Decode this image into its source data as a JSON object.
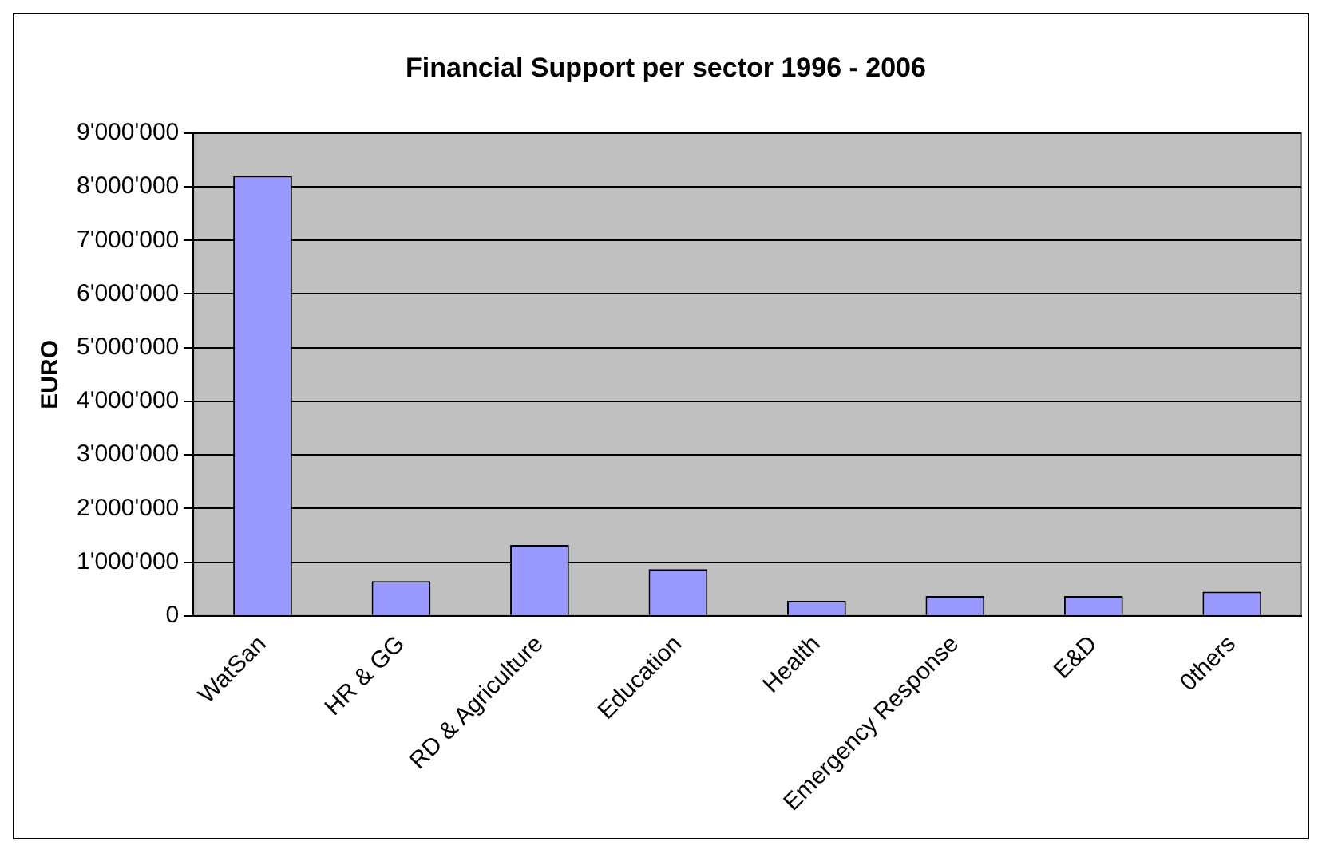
{
  "chart_data": {
    "type": "bar",
    "title": "Financial Support per sector 1996 - 2006",
    "ylabel": "EURO",
    "categories": [
      "WatSan",
      "HR & GG",
      "RD & Agriculture",
      "Education",
      "Health",
      "Emergency Response",
      "E&D",
      "0thers"
    ],
    "values": [
      8200000,
      650000,
      1320000,
      870000,
      280000,
      370000,
      370000,
      450000
    ],
    "color": "#9999ff",
    "ylim": [
      0,
      9000000
    ],
    "yticks": [
      {
        "value": 0,
        "label": "0"
      },
      {
        "value": 1000000,
        "label": "1'000'000"
      },
      {
        "value": 2000000,
        "label": "2'000'000"
      },
      {
        "value": 3000000,
        "label": "3'000'000"
      },
      {
        "value": 4000000,
        "label": "4'000'000"
      },
      {
        "value": 5000000,
        "label": "5'000'000"
      },
      {
        "value": 6000000,
        "label": "6'000'000"
      },
      {
        "value": 7000000,
        "label": "7'000'000"
      },
      {
        "value": 8000000,
        "label": "8'000'000"
      },
      {
        "value": 9000000,
        "label": "9'000'000"
      }
    ],
    "grid": "y",
    "legend": false
  }
}
